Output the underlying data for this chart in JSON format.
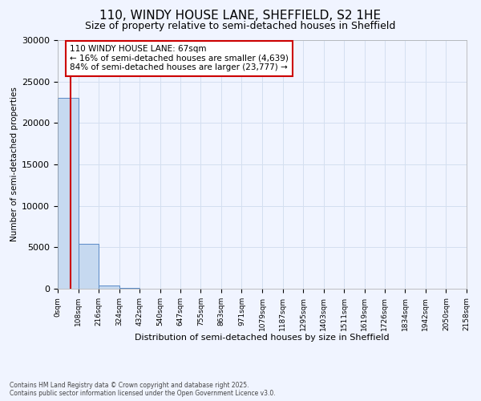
{
  "title": "110, WINDY HOUSE LANE, SHEFFIELD, S2 1HE",
  "subtitle": "Size of property relative to semi-detached houses in Sheffield",
  "xlabel": "Distribution of semi-detached houses by size in Sheffield",
  "ylabel": "Number of semi-detached properties",
  "property_size": 67,
  "property_label": "110 WINDY HOUSE LANE: 67sqm",
  "pct_smaller": 16,
  "pct_larger": 84,
  "n_smaller": 4639,
  "n_larger": 23777,
  "bin_edges": [
    0,
    108,
    216,
    324,
    432,
    540,
    647,
    755,
    863,
    971,
    1079,
    1187,
    1295,
    1403,
    1511,
    1619,
    1726,
    1834,
    1942,
    2050,
    2158
  ],
  "bar_heights": [
    23000,
    5400,
    400,
    100,
    40,
    15,
    8,
    4,
    2,
    1,
    1,
    0,
    0,
    0,
    0,
    0,
    0,
    0,
    0,
    0
  ],
  "bar_color": "#c6d9f0",
  "bar_edge_color": "#5a8ac6",
  "annotation_box_color": "#cc0000",
  "vline_color": "#cc0000",
  "grid_color": "#d4dff0",
  "background_color": "#f0f4ff",
  "footer_text": "Contains HM Land Registry data © Crown copyright and database right 2025.\nContains public sector information licensed under the Open Government Licence v3.0.",
  "ylim": [
    0,
    30000
  ],
  "yticks": [
    0,
    5000,
    10000,
    15000,
    20000,
    25000,
    30000
  ]
}
